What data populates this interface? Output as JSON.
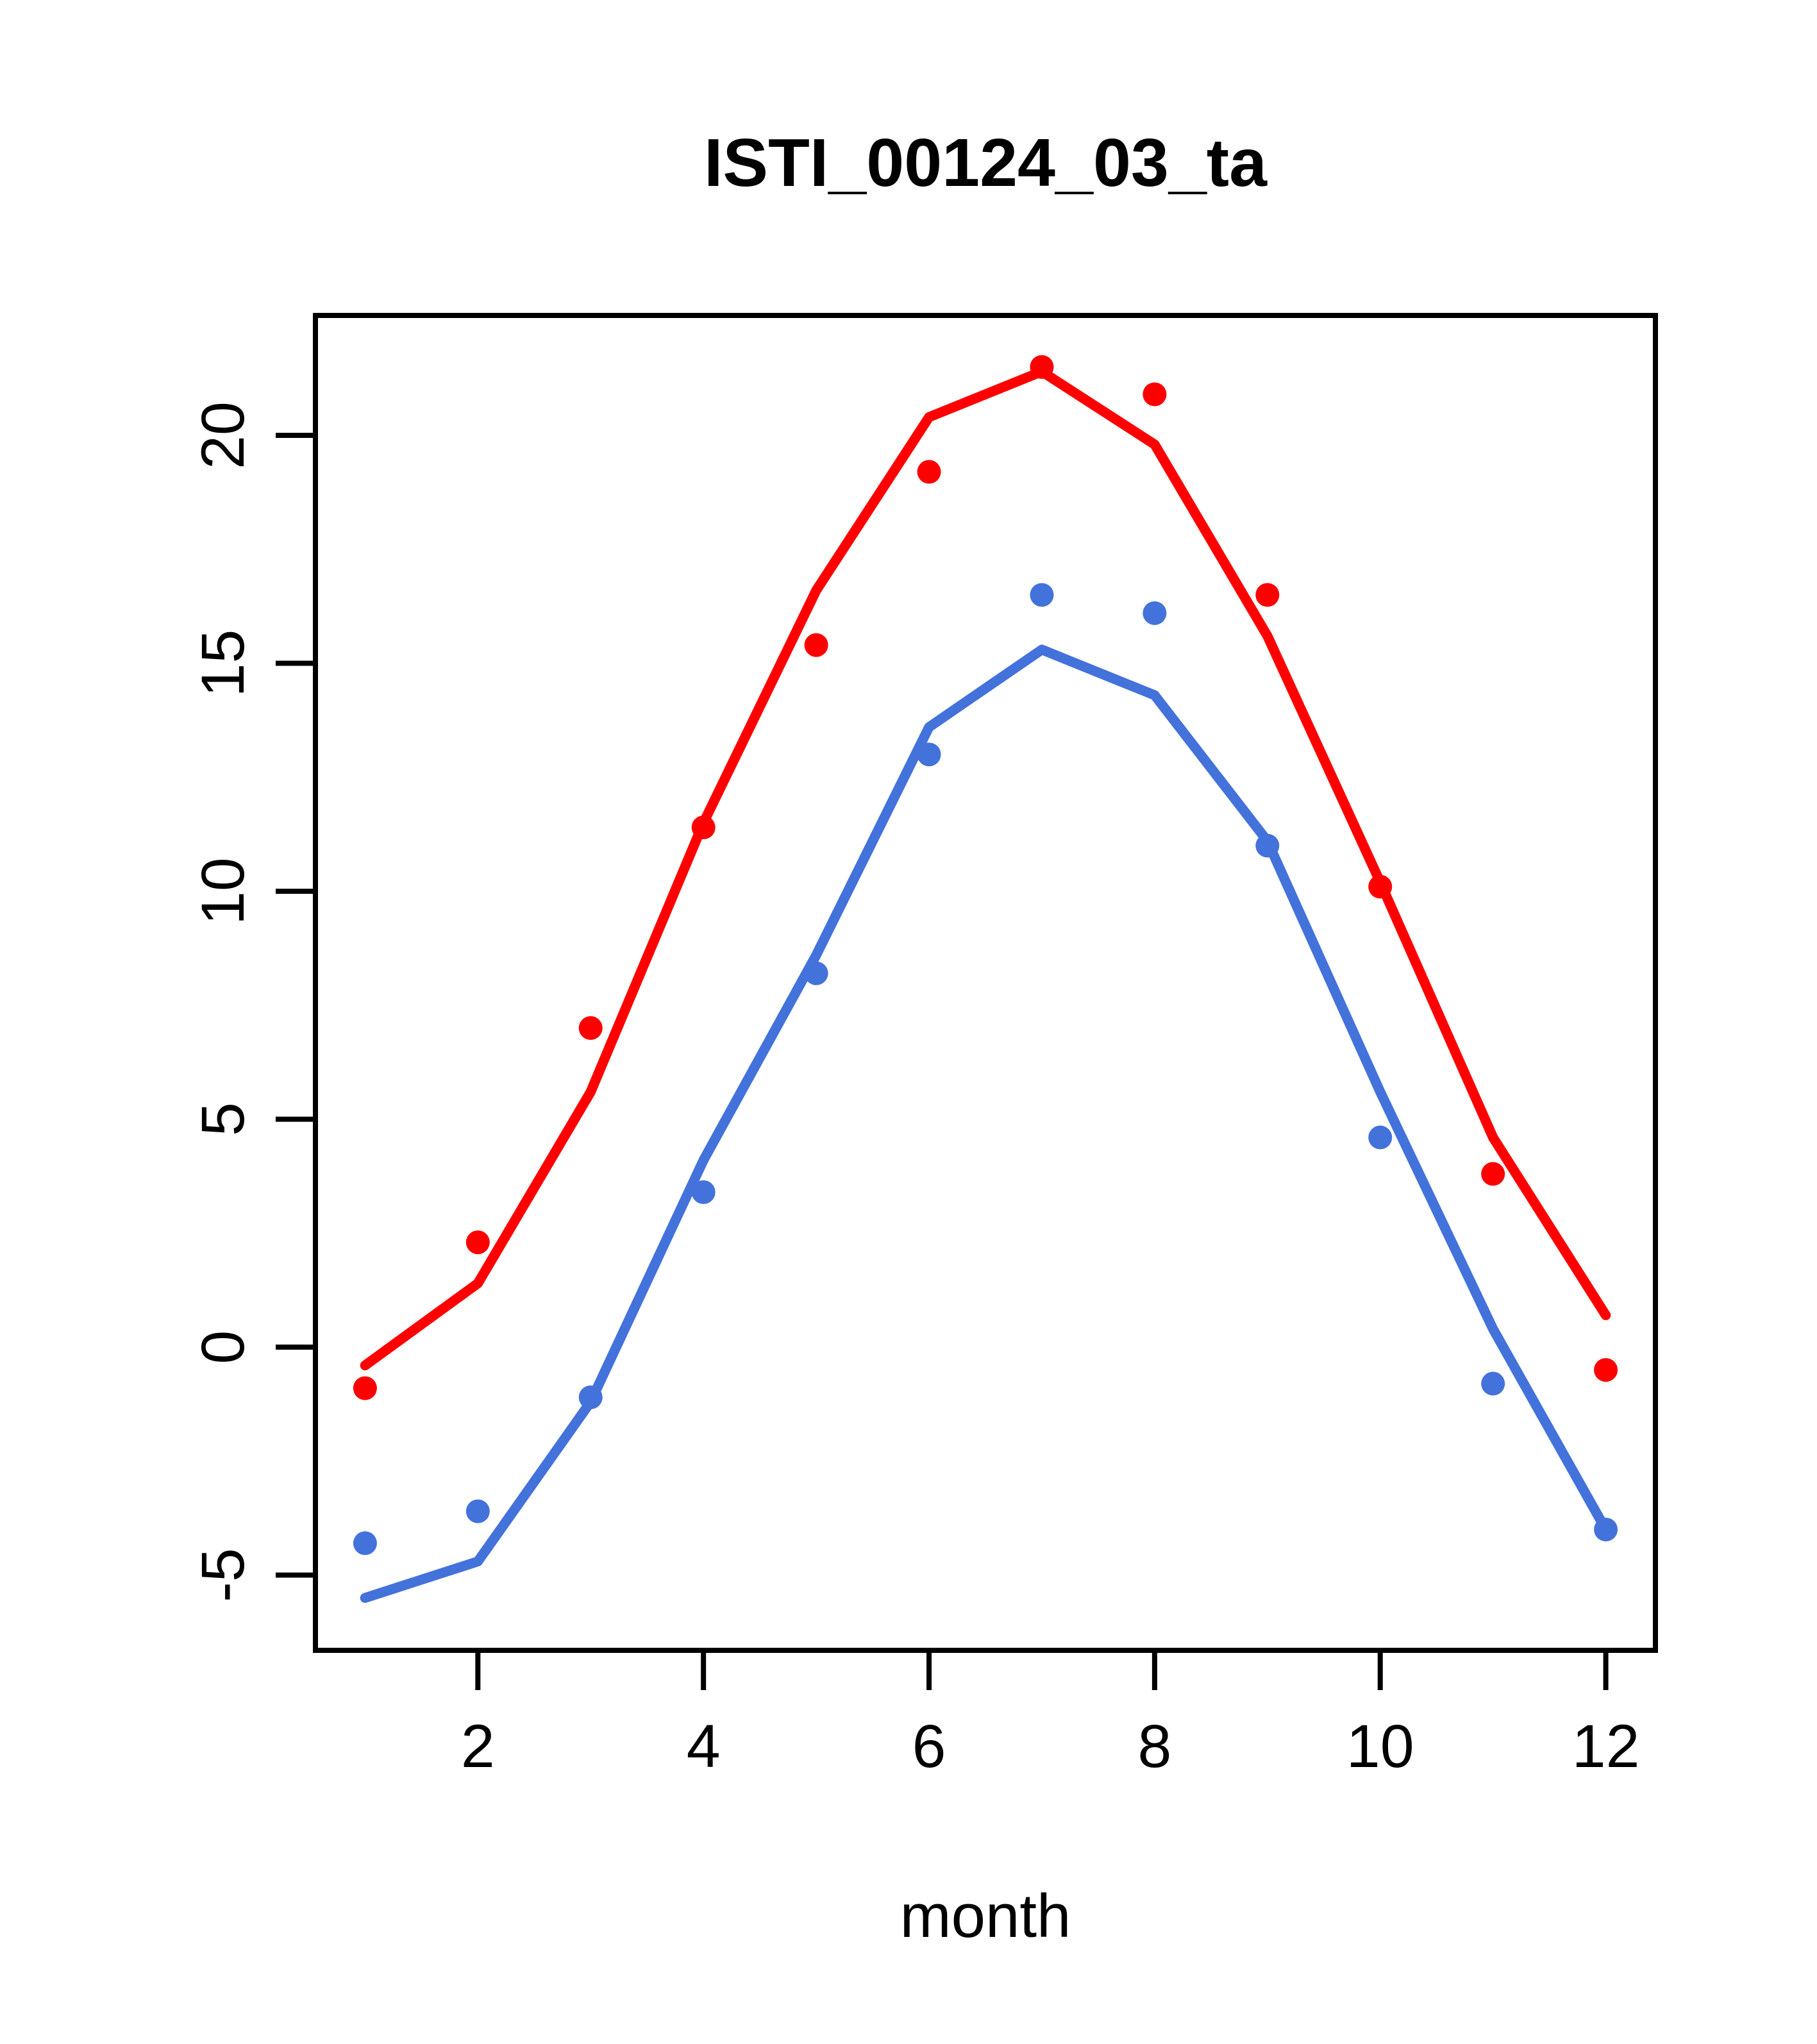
{
  "page": {
    "background": "#ffffff"
  },
  "chart_data": {
    "type": "line+scatter",
    "title": "ISTI_00124_03_ta",
    "xlabel": "month",
    "ylabel": "",
    "x": [
      1,
      2,
      3,
      4,
      5,
      6,
      7,
      8,
      9,
      10,
      11,
      12
    ],
    "xticks": [
      "2",
      "4",
      "6",
      "8",
      "10",
      "12"
    ],
    "yticks": [
      "-5",
      "0",
      "5",
      "10",
      "15",
      "20"
    ],
    "xtick_values": [
      2,
      4,
      6,
      8,
      10,
      12
    ],
    "ytick_values": [
      -5,
      0,
      5,
      10,
      15,
      20
    ],
    "xlim": [
      0.56,
      12.44
    ],
    "ylim": [
      -6.65,
      22.63
    ],
    "grid": false,
    "legend": false,
    "colors": {
      "red": "#FF0000",
      "blue": "#4372DB",
      "axis": "#000000"
    },
    "series": [
      {
        "name": "red-line",
        "type": "line",
        "color": "#FF0000",
        "values": [
          -0.4,
          1.4,
          5.6,
          11.5,
          16.6,
          20.4,
          21.4,
          19.8,
          15.6,
          10.2,
          4.6,
          0.7
        ]
      },
      {
        "name": "blue-line",
        "type": "line",
        "color": "#4372DB",
        "values": [
          -5.5,
          -4.7,
          -1.2,
          4.1,
          8.6,
          13.6,
          15.3,
          14.3,
          11.1,
          5.6,
          0.4,
          -4.0
        ]
      },
      {
        "name": "red-points",
        "type": "scatter",
        "color": "#FF0000",
        "values": [
          -0.9,
          2.3,
          7.0,
          11.4,
          15.4,
          19.2,
          21.5,
          20.9,
          16.5,
          10.1,
          3.8,
          -0.5
        ]
      },
      {
        "name": "blue-points",
        "type": "scatter",
        "color": "#4372DB",
        "values": [
          -4.3,
          -3.6,
          -1.1,
          3.4,
          8.2,
          13.0,
          16.5,
          16.1,
          11.0,
          4.6,
          -0.8,
          -4.0
        ]
      }
    ]
  }
}
